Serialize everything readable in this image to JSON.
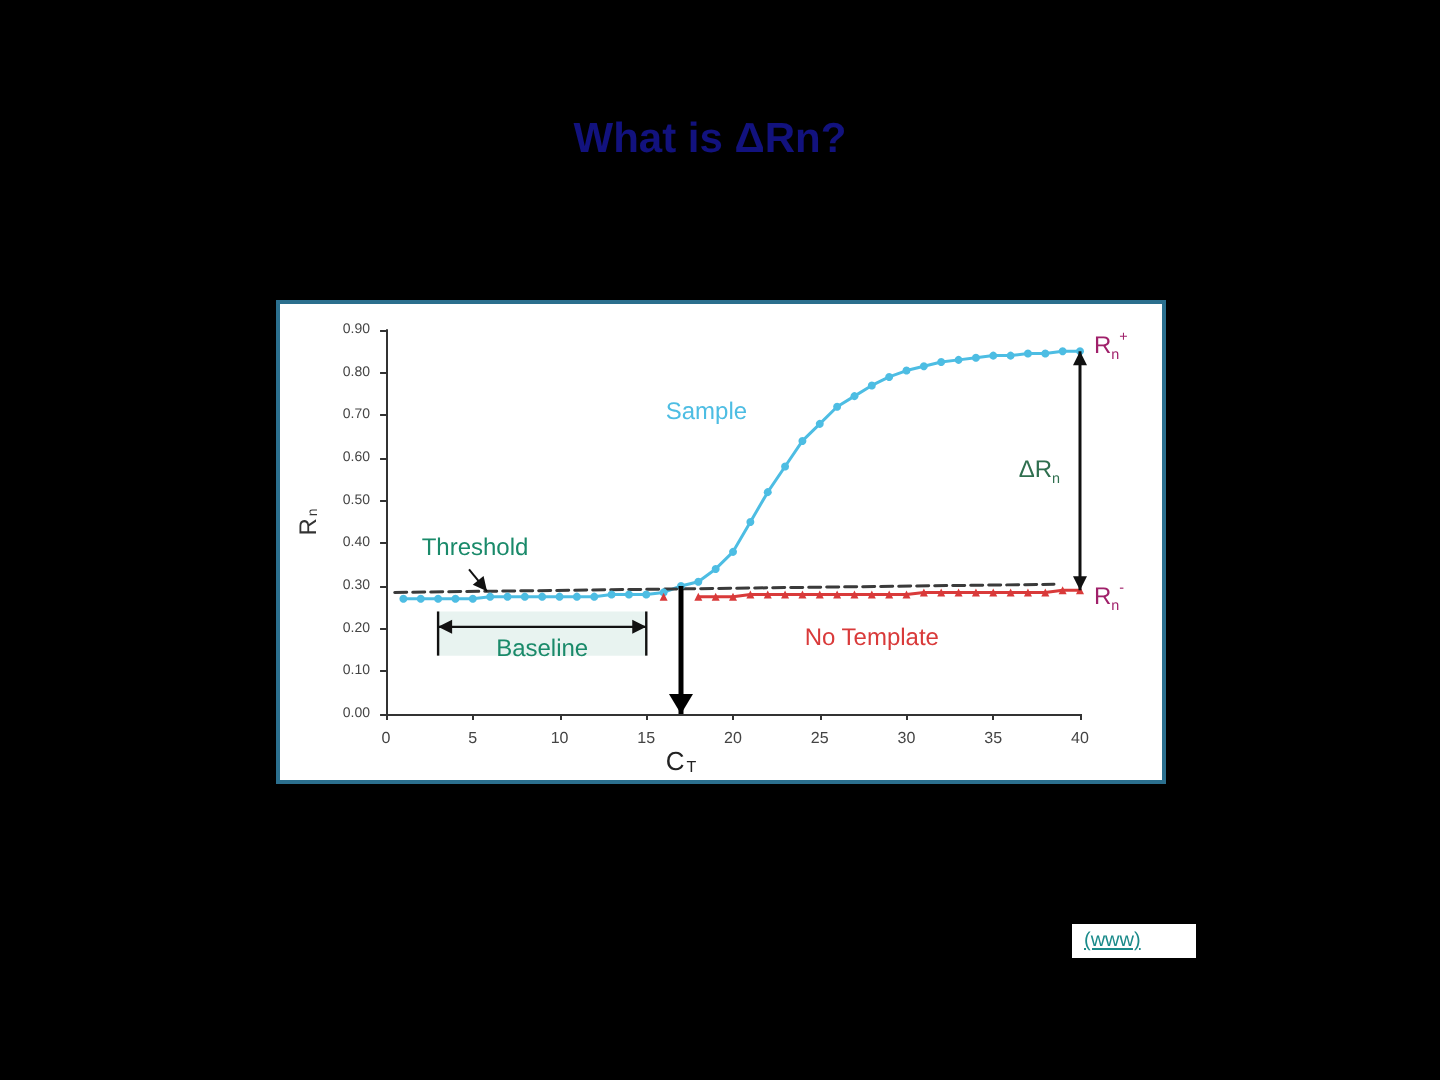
{
  "chart_data": {
    "type": "line",
    "title": "What is ΔRn?",
    "ylabel": "R$_{n}$",
    "xlim": [
      0,
      40
    ],
    "xticks": [
      0,
      5,
      10,
      15,
      20,
      25,
      30,
      35,
      40
    ],
    "ylim": [
      0,
      0.9
    ],
    "yticks": [
      {
        "value": 0,
        "label": "0.00"
      },
      {
        "value": 0.1,
        "label": "0.10"
      },
      {
        "value": 0.2,
        "label": "0.20"
      },
      {
        "value": 0.3,
        "label": "0.30"
      },
      {
        "value": 0.4,
        "label": "0.40"
      },
      {
        "value": 0.5,
        "label": "0.50"
      },
      {
        "value": 0.6,
        "label": "0.60"
      },
      {
        "value": 0.7,
        "label": "0.70"
      },
      {
        "value": 0.8,
        "label": "0.80"
      },
      {
        "value": 0.9,
        "label": "0.90"
      }
    ],
    "grid": false,
    "legend": false,
    "line_style": "solid",
    "series": [
      {
        "name": "Sample",
        "color": "#4dbde3",
        "marker": "circle",
        "x": [
          1,
          2,
          3,
          4,
          5,
          6,
          7,
          8,
          9,
          10,
          11,
          12,
          13,
          14,
          15,
          16,
          17,
          18,
          19,
          20,
          21,
          22,
          23,
          24,
          25,
          26,
          27,
          28,
          29,
          30,
          31,
          32,
          33,
          34,
          35,
          36,
          37,
          38,
          39,
          40
        ],
        "values": [
          0.27,
          0.27,
          0.27,
          0.27,
          0.27,
          0.275,
          0.275,
          0.275,
          0.275,
          0.275,
          0.275,
          0.275,
          0.28,
          0.28,
          0.28,
          0.285,
          0.3,
          0.31,
          0.34,
          0.38,
          0.45,
          0.52,
          0.58,
          0.64,
          0.68,
          0.72,
          0.745,
          0.77,
          0.79,
          0.805,
          0.815,
          0.825,
          0.83,
          0.835,
          0.84,
          0.84,
          0.845,
          0.845,
          0.85,
          0.85
        ]
      },
      {
        "name": "No Template",
        "color": "#d93a3a",
        "marker": "triangle",
        "x": [
          16,
          17,
          18,
          19,
          20,
          21,
          22,
          23,
          24,
          25,
          26,
          27,
          28,
          29,
          30,
          31,
          32,
          33,
          34,
          35,
          36,
          37,
          38,
          39,
          40
        ],
        "values": [
          0.275,
          null,
          0.275,
          0.275,
          0.275,
          0.28,
          0.28,
          0.28,
          0.28,
          0.28,
          0.28,
          0.28,
          0.28,
          0.28,
          0.28,
          0.285,
          0.285,
          0.285,
          0.285,
          0.285,
          0.285,
          0.285,
          0.285,
          0.29,
          0.29
        ]
      },
      {
        "color": "#3a3a3a",
        "marker": "none",
        "line_style": "dashed",
        "x": [
          0.5,
          38.5
        ],
        "values": [
          0.285,
          0.304
        ]
      }
    ],
    "ref_lines": [
      {
        "axis": "x",
        "value": 17,
        "label": "C$_{T}$",
        "color": "#000000"
      }
    ],
    "bands": [
      {
        "axis": "x",
        "from": 3,
        "to": 15,
        "label": "Baseline"
      }
    ],
    "annotations": [
      "Threshold",
      "ΔR$_{n}$",
      "R$_{n}$$^{+}$",
      "R$_{n}$$^{-}$",
      "(www)"
    ]
  }
}
